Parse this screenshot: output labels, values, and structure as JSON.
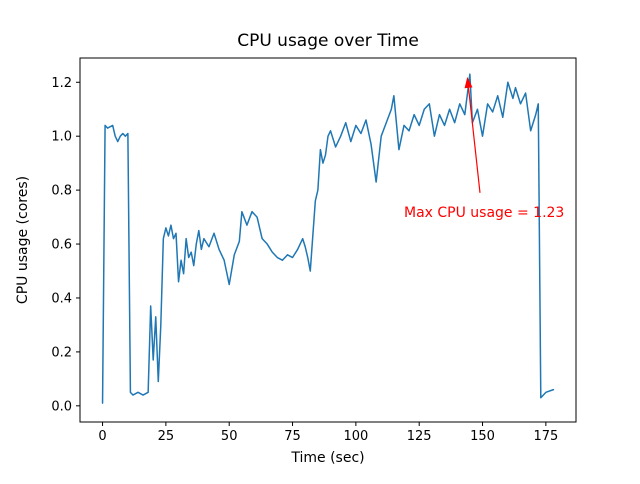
{
  "figure": {
    "background": "#ffffff",
    "spine_color": "#000000"
  },
  "chart_data": {
    "type": "line",
    "title": "CPU usage over Time",
    "xlabel": "Time (sec)",
    "ylabel": "CPU usage (cores)",
    "line_color": "#1f77b4",
    "line_width": 1.5,
    "grid": false,
    "legend": null,
    "xlim": [
      -8.9,
      186.9
    ],
    "ylim": [
      -0.06,
      1.29
    ],
    "xtick_values": [
      0,
      25,
      50,
      75,
      100,
      125,
      150,
      175
    ],
    "xtick_labels": [
      "0",
      "25",
      "50",
      "75",
      "100",
      "125",
      "150",
      "175"
    ],
    "ytick_values": [
      0.0,
      0.2,
      0.4,
      0.6,
      0.8,
      1.0,
      1.2
    ],
    "ytick_labels": [
      "0.0",
      "0.2",
      "0.4",
      "0.6",
      "0.8",
      "1.0",
      "1.2"
    ],
    "points": [
      [
        0,
        0.01
      ],
      [
        1,
        1.04
      ],
      [
        2,
        1.03
      ],
      [
        4,
        1.04
      ],
      [
        5,
        1.0
      ],
      [
        6,
        0.98
      ],
      [
        7,
        1.0
      ],
      [
        8,
        1.01
      ],
      [
        9,
        1.0
      ],
      [
        10,
        1.01
      ],
      [
        11,
        0.05
      ],
      [
        12,
        0.04
      ],
      [
        14,
        0.05
      ],
      [
        16,
        0.04
      ],
      [
        18,
        0.05
      ],
      [
        19,
        0.37
      ],
      [
        20,
        0.17
      ],
      [
        21,
        0.33
      ],
      [
        22,
        0.09
      ],
      [
        23,
        0.3
      ],
      [
        24,
        0.62
      ],
      [
        25,
        0.66
      ],
      [
        26,
        0.63
      ],
      [
        27,
        0.67
      ],
      [
        28,
        0.62
      ],
      [
        29,
        0.64
      ],
      [
        30,
        0.46
      ],
      [
        31,
        0.54
      ],
      [
        32,
        0.49
      ],
      [
        33,
        0.62
      ],
      [
        34,
        0.55
      ],
      [
        35,
        0.57
      ],
      [
        36,
        0.52
      ],
      [
        37,
        0.6
      ],
      [
        38,
        0.65
      ],
      [
        39,
        0.58
      ],
      [
        40,
        0.62
      ],
      [
        42,
        0.59
      ],
      [
        44,
        0.64
      ],
      [
        46,
        0.58
      ],
      [
        48,
        0.54
      ],
      [
        50,
        0.45
      ],
      [
        52,
        0.56
      ],
      [
        54,
        0.61
      ],
      [
        55,
        0.72
      ],
      [
        57,
        0.67
      ],
      [
        59,
        0.72
      ],
      [
        61,
        0.7
      ],
      [
        63,
        0.62
      ],
      [
        65,
        0.6
      ],
      [
        67,
        0.57
      ],
      [
        69,
        0.55
      ],
      [
        71,
        0.54
      ],
      [
        73,
        0.56
      ],
      [
        75,
        0.55
      ],
      [
        77,
        0.58
      ],
      [
        79,
        0.62
      ],
      [
        80,
        0.59
      ],
      [
        81,
        0.55
      ],
      [
        82,
        0.5
      ],
      [
        83,
        0.63
      ],
      [
        84,
        0.76
      ],
      [
        85,
        0.8
      ],
      [
        86,
        0.95
      ],
      [
        87,
        0.9
      ],
      [
        88,
        0.93
      ],
      [
        89,
        1.0
      ],
      [
        90,
        1.02
      ],
      [
        92,
        0.96
      ],
      [
        94,
        1.0
      ],
      [
        96,
        1.05
      ],
      [
        98,
        0.98
      ],
      [
        100,
        1.04
      ],
      [
        102,
        1.01
      ],
      [
        104,
        1.06
      ],
      [
        106,
        0.97
      ],
      [
        108,
        0.83
      ],
      [
        110,
        1.0
      ],
      [
        112,
        1.05
      ],
      [
        114,
        1.1
      ],
      [
        115,
        1.15
      ],
      [
        117,
        0.95
      ],
      [
        119,
        1.04
      ],
      [
        121,
        1.02
      ],
      [
        123,
        1.08
      ],
      [
        125,
        1.04
      ],
      [
        127,
        1.1
      ],
      [
        129,
        1.12
      ],
      [
        131,
        1.0
      ],
      [
        133,
        1.08
      ],
      [
        135,
        1.04
      ],
      [
        137,
        1.1
      ],
      [
        139,
        1.05
      ],
      [
        141,
        1.12
      ],
      [
        143,
        1.08
      ],
      [
        145,
        1.23
      ],
      [
        146,
        1.05
      ],
      [
        148,
        1.1
      ],
      [
        150,
        1.0
      ],
      [
        152,
        1.12
      ],
      [
        154,
        1.09
      ],
      [
        156,
        1.15
      ],
      [
        158,
        1.07
      ],
      [
        160,
        1.2
      ],
      [
        162,
        1.14
      ],
      [
        163,
        1.18
      ],
      [
        165,
        1.12
      ],
      [
        167,
        1.16
      ],
      [
        169,
        1.02
      ],
      [
        171,
        1.08
      ],
      [
        172,
        1.12
      ],
      [
        173,
        0.03
      ],
      [
        175,
        0.05
      ],
      [
        178,
        0.06
      ]
    ],
    "max_value": 1.23,
    "annotation": {
      "text": "Max CPU usage = 1.23",
      "color": "#ff0000",
      "text_xy": [
        119,
        0.7
      ],
      "arrow_tail_xy": [
        149,
        0.79
      ],
      "arrow_tip_xy": [
        144,
        1.22
      ]
    }
  }
}
